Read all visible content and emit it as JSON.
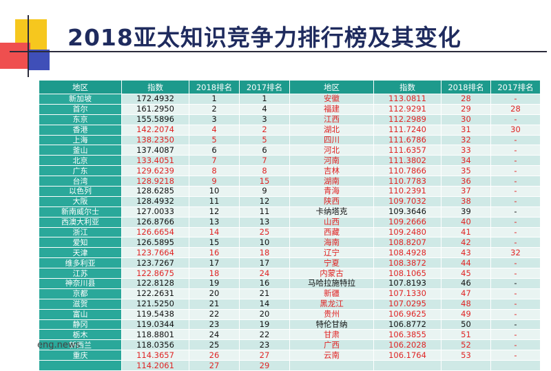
{
  "title": "2018亚太知识竞争力排行榜及其变化",
  "watermark": "eng.news",
  "headers": [
    "地区",
    "指数",
    "2018排名",
    "2017排名",
    "地区",
    "指数",
    "2018排名",
    "2017排名"
  ],
  "colors": {
    "header": "#1d9a8c",
    "region_cell": "#2aa89a",
    "row_odd": "#cfe9e6",
    "row_even": "#e9f4f2",
    "highlight_red": "#e02424"
  },
  "rows": [
    {
      "l": [
        "新加坡",
        "172.4932",
        "1",
        "1"
      ],
      "lred": false,
      "r": [
        "安徽",
        "113.0811",
        "28",
        "-"
      ],
      "rred": true
    },
    {
      "l": [
        "首尔",
        "161.2950",
        "2",
        "4"
      ],
      "lred": false,
      "r": [
        "福建",
        "112.9291",
        "29",
        "28"
      ],
      "rred": true
    },
    {
      "l": [
        "东京",
        "155.5896",
        "3",
        "3"
      ],
      "lred": false,
      "r": [
        "江西",
        "112.2989",
        "30",
        "-"
      ],
      "rred": true
    },
    {
      "l": [
        "香港",
        "142.2074",
        "4",
        "2"
      ],
      "lred": true,
      "r": [
        "湖北",
        "111.7240",
        "31",
        "30"
      ],
      "rred": true
    },
    {
      "l": [
        "上海",
        "138.2350",
        "5",
        "5"
      ],
      "lred": true,
      "r": [
        "四川",
        "111.6786",
        "32",
        "-"
      ],
      "rred": true
    },
    {
      "l": [
        "釜山",
        "137.4087",
        "6",
        "6"
      ],
      "lred": false,
      "r": [
        "河北",
        "111.6357",
        "33",
        "-"
      ],
      "rred": true
    },
    {
      "l": [
        "北京",
        "133.4051",
        "7",
        "7"
      ],
      "lred": true,
      "r": [
        "河南",
        "111.3802",
        "34",
        "-"
      ],
      "rred": true
    },
    {
      "l": [
        "广东",
        "129.6239",
        "8",
        "8"
      ],
      "lred": true,
      "r": [
        "吉林",
        "110.7866",
        "35",
        "-"
      ],
      "rred": true
    },
    {
      "l": [
        "台湾",
        "128.9218",
        "9",
        "15"
      ],
      "lred": true,
      "r": [
        "湖南",
        "110.7783",
        "36",
        "-"
      ],
      "rred": true
    },
    {
      "l": [
        "以色列",
        "128.6285",
        "10",
        "9"
      ],
      "lred": false,
      "r": [
        "青海",
        "110.2391",
        "37",
        "-"
      ],
      "rred": true
    },
    {
      "l": [
        "大阪",
        "128.4932",
        "11",
        "12"
      ],
      "lred": false,
      "r": [
        "陕西",
        "109.7032",
        "38",
        "-"
      ],
      "rred": true
    },
    {
      "l": [
        "新南威尔士",
        "127.0033",
        "12",
        "11"
      ],
      "lred": false,
      "r": [
        "卡纳塔克",
        "109.3646",
        "39",
        "-"
      ],
      "rred": false
    },
    {
      "l": [
        "西澳大利亚",
        "126.8766",
        "13",
        "13"
      ],
      "lred": false,
      "r": [
        "山西",
        "109.2666",
        "40",
        "-"
      ],
      "rred": true
    },
    {
      "l": [
        "浙江",
        "126.6654",
        "14",
        "25"
      ],
      "lred": true,
      "r": [
        "西藏",
        "109.2480",
        "41",
        "-"
      ],
      "rred": true
    },
    {
      "l": [
        "爱知",
        "126.5895",
        "15",
        "10"
      ],
      "lred": false,
      "r": [
        "海南",
        "108.8207",
        "42",
        "-"
      ],
      "rred": true
    },
    {
      "l": [
        "天津",
        "123.7664",
        "16",
        "18"
      ],
      "lred": true,
      "r": [
        "辽宁",
        "108.4928",
        "43",
        "32"
      ],
      "rred": true
    },
    {
      "l": [
        "维多利亚",
        "123.7267",
        "17",
        "17"
      ],
      "lred": false,
      "r": [
        "宁夏",
        "108.3872",
        "44",
        "-"
      ],
      "rred": true
    },
    {
      "l": [
        "江苏",
        "122.8675",
        "18",
        "24"
      ],
      "lred": true,
      "r": [
        "内蒙古",
        "108.1065",
        "45",
        "-"
      ],
      "rred": true
    },
    {
      "l": [
        "神奈川县",
        "122.8128",
        "19",
        "16"
      ],
      "lred": false,
      "r": [
        "马哈拉施特拉",
        "107.8193",
        "46",
        "-"
      ],
      "rred": false
    },
    {
      "l": [
        "京都",
        "122.2631",
        "20",
        "21"
      ],
      "lred": false,
      "r": [
        "新疆",
        "107.1330",
        "47",
        "-"
      ],
      "rred": true
    },
    {
      "l": [
        "滋贺",
        "121.5250",
        "21",
        "14"
      ],
      "lred": false,
      "r": [
        "黑龙江",
        "107.0295",
        "48",
        "-"
      ],
      "rred": true
    },
    {
      "l": [
        "富山",
        "119.5438",
        "22",
        "20"
      ],
      "lred": false,
      "r": [
        "贵州",
        "106.9625",
        "49",
        "-"
      ],
      "rred": true
    },
    {
      "l": [
        "静冈",
        "119.0344",
        "23",
        "19"
      ],
      "lred": false,
      "r": [
        "特伦甘纳",
        "106.8772",
        "50",
        "-"
      ],
      "rred": false
    },
    {
      "l": [
        "栃木",
        "118.8801",
        "24",
        "22"
      ],
      "lred": false,
      "r": [
        "甘肃",
        "106.3855",
        "51",
        "-"
      ],
      "rred": true
    },
    {
      "l": [
        "新西兰",
        "118.0356",
        "25",
        "23"
      ],
      "lred": false,
      "r": [
        "广西",
        "106.2028",
        "52",
        "-"
      ],
      "rred": true
    },
    {
      "l": [
        "重庆",
        "114.3657",
        "26",
        "27"
      ],
      "lred": true,
      "r": [
        "云南",
        "106.1764",
        "53",
        "-"
      ],
      "rred": true
    },
    {
      "l": [
        "",
        "114.2061",
        "27",
        "29"
      ],
      "lred": true,
      "r": [
        "",
        "",
        "",
        ""
      ],
      "rred": true
    }
  ]
}
